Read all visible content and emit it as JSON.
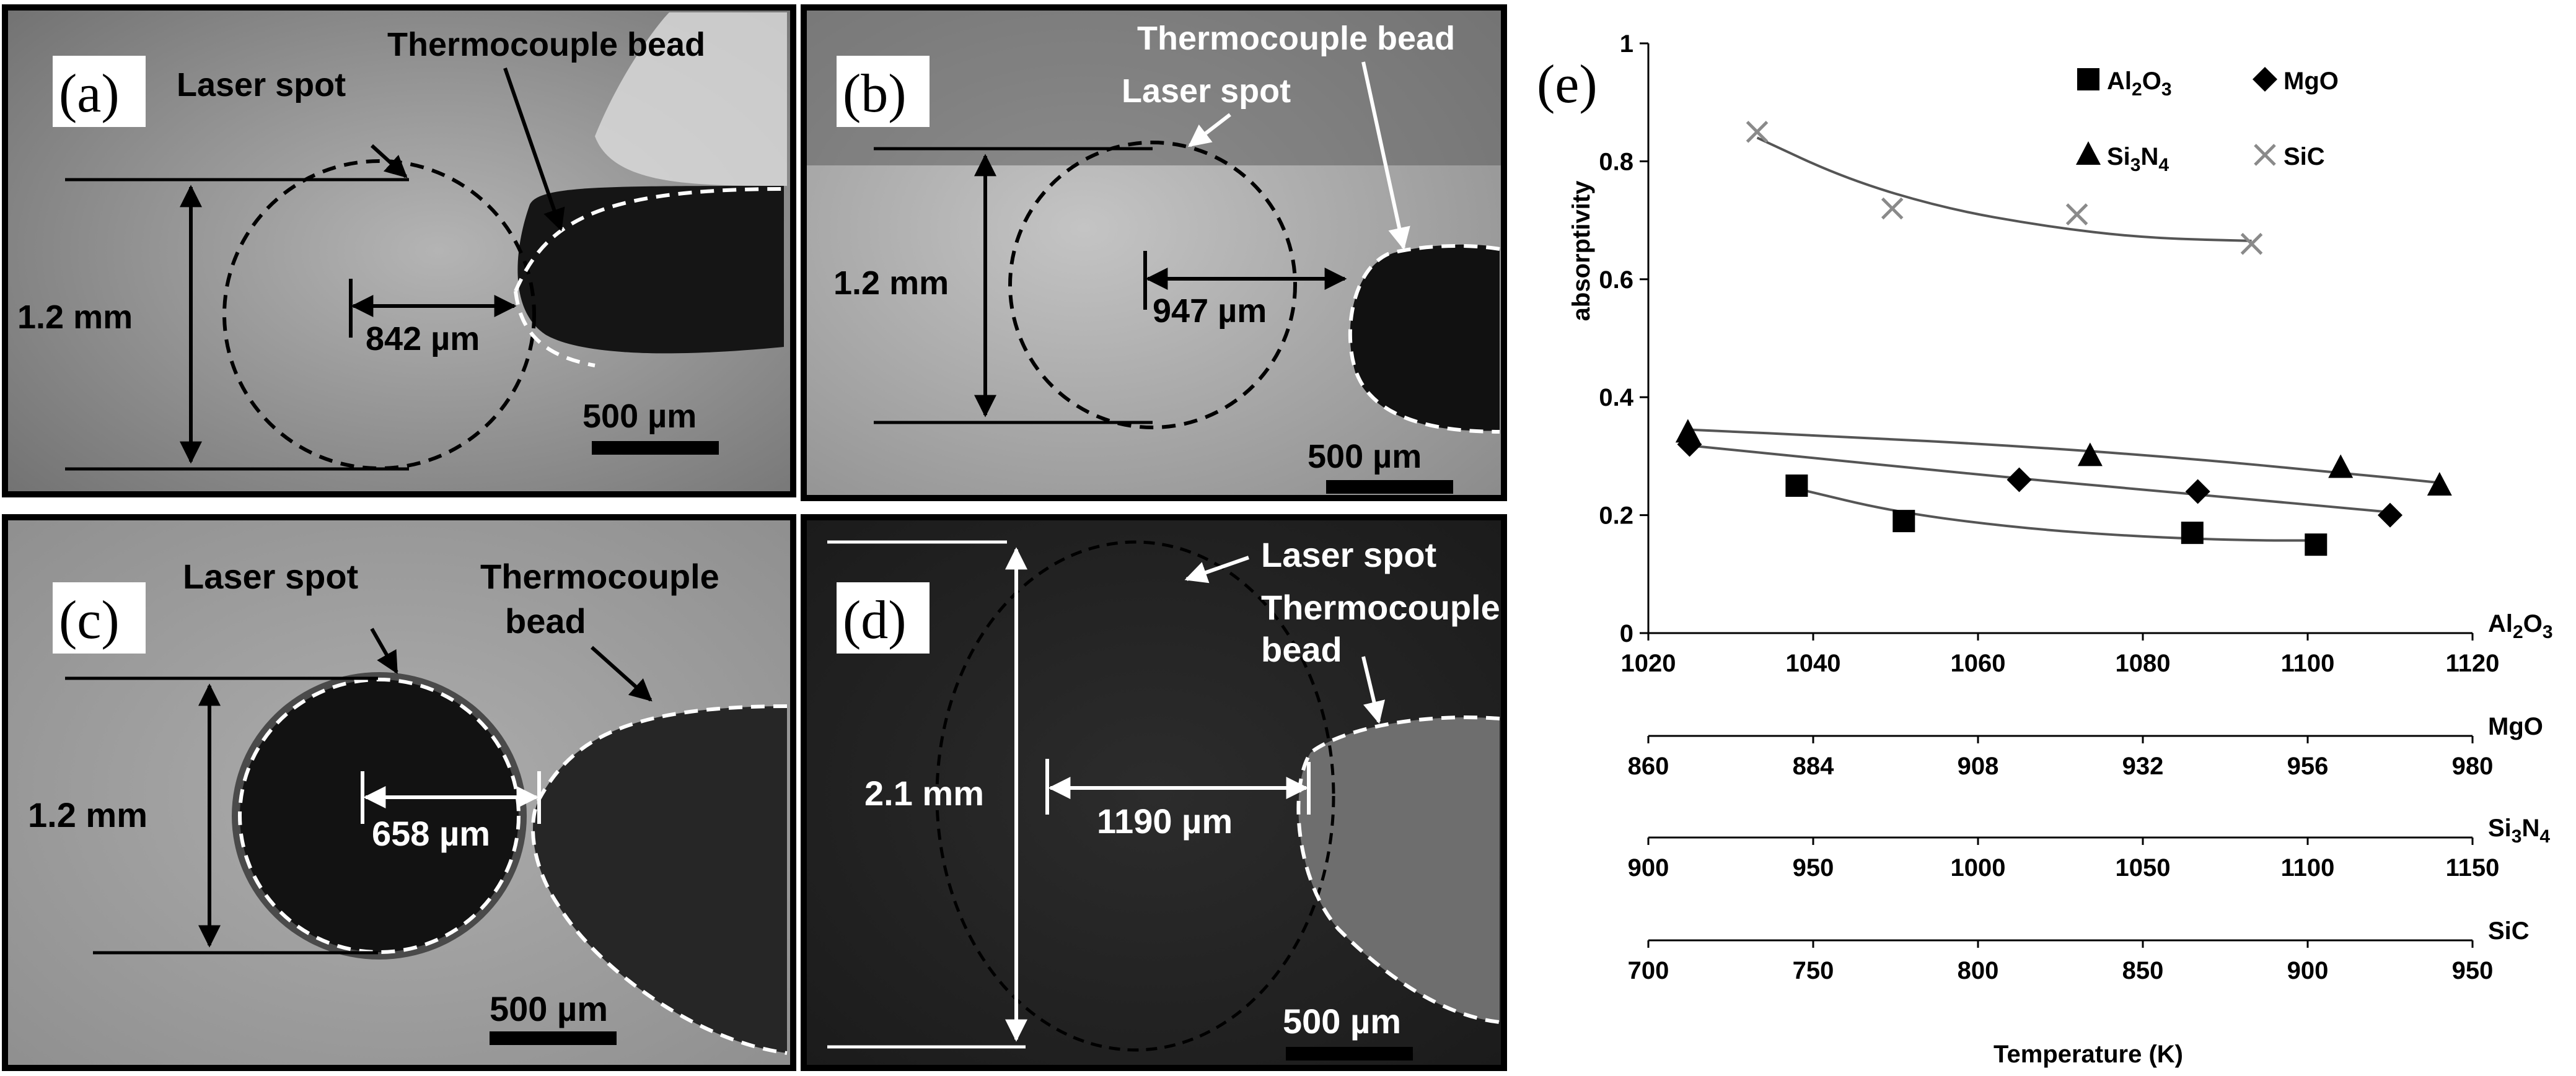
{
  "panels": {
    "a": {
      "letter": "(a)",
      "laser_spot": "Laser spot",
      "bead": "Thermocouple bead",
      "diameter": "1.2 mm",
      "distance": "842 µm",
      "scale": "500 µm"
    },
    "b": {
      "letter": "(b)",
      "laser_spot": "Laser spot",
      "bead": "Thermocouple bead",
      "diameter": "1.2 mm",
      "distance": "947 µm",
      "scale": "500 µm"
    },
    "c": {
      "letter": "(c)",
      "laser_spot": "Laser spot",
      "bead_line1": "Thermocouple",
      "bead_line2": "bead",
      "diameter": "1.2 mm",
      "distance": "658 µm",
      "scale": "500 µm"
    },
    "d": {
      "letter": "(d)",
      "laser_spot": "Laser spot",
      "bead_line1": "Thermocouple",
      "bead_line2": "bead",
      "diameter": "2.1 mm",
      "distance": "1190 µm",
      "scale": "500 µm"
    }
  },
  "chart_data": {
    "type": "scatter",
    "panel_letter": "(e)",
    "ylabel": "absorptivity",
    "xlabel": "Temperature (K)",
    "ylim": [
      0,
      1
    ],
    "yticks": [
      0,
      0.2,
      0.4,
      0.6,
      0.8,
      1
    ],
    "ytick_labels": [
      "0",
      "0.2",
      "0.4",
      "0.6",
      "0.8",
      "1"
    ],
    "legend_position": "top",
    "axes": [
      {
        "name": "Al2O3",
        "label_base": "Al",
        "label_sub1": "2",
        "label_mid": "O",
        "label_sub2": "3",
        "range": [
          1020,
          1120
        ],
        "ticks": [
          "1020",
          "1040",
          "1060",
          "1080",
          "1100",
          "1120"
        ]
      },
      {
        "name": "MgO",
        "label_base": "MgO",
        "range": [
          860,
          980
        ],
        "ticks": [
          "860",
          "884",
          "908",
          "932",
          "956",
          "980"
        ]
      },
      {
        "name": "Si3N4",
        "label_base": "Si",
        "label_sub1": "3",
        "label_mid": "N",
        "label_sub2": "4",
        "range": [
          900,
          1150
        ],
        "ticks": [
          "900",
          "950",
          "1000",
          "1050",
          "1100",
          "1150"
        ]
      },
      {
        "name": "SiC",
        "label_base": "SiC",
        "range": [
          700,
          950
        ],
        "ticks": [
          "700",
          "750",
          "800",
          "850",
          "900",
          "950"
        ]
      }
    ],
    "series": [
      {
        "name": "Al2O3",
        "label_base": "Al",
        "label_sub1": "2",
        "label_mid": "O",
        "label_sub2": "3",
        "marker": "square",
        "axis": 0,
        "x": [
          1038,
          1051,
          1086,
          1101
        ],
        "y": [
          0.25,
          0.19,
          0.17,
          0.15
        ],
        "fit": [
          [
            1038,
            0.245
          ],
          [
            1050,
            0.205
          ],
          [
            1065,
            0.178
          ],
          [
            1080,
            0.163
          ],
          [
            1093,
            0.157
          ],
          [
            1101,
            0.157
          ]
        ]
      },
      {
        "name": "MgO",
        "label_base": "MgO",
        "marker": "diamond",
        "axis": 1,
        "x": [
          866,
          914,
          940,
          968
        ],
        "y": [
          0.32,
          0.26,
          0.24,
          0.2
        ],
        "fit": [
          [
            866,
            0.318
          ],
          [
            890,
            0.29
          ],
          [
            914,
            0.262
          ],
          [
            940,
            0.235
          ],
          [
            968,
            0.205
          ]
        ]
      },
      {
        "name": "Si3N4",
        "label_base": "Si",
        "label_sub1": "3",
        "label_mid": "N",
        "label_sub2": "4",
        "marker": "triangle",
        "axis": 2,
        "x": [
          912,
          1034,
          1110,
          1140
        ],
        "y": [
          0.34,
          0.3,
          0.28,
          0.25
        ],
        "fit": [
          [
            912,
            0.345
          ],
          [
            960,
            0.333
          ],
          [
            1010,
            0.318
          ],
          [
            1060,
            0.298
          ],
          [
            1110,
            0.272
          ],
          [
            1140,
            0.255
          ]
        ]
      },
      {
        "name": "SiC",
        "label_base": "SiC",
        "marker": "cross",
        "axis": 3,
        "x": [
          733,
          774,
          830,
          883
        ],
        "y": [
          0.85,
          0.72,
          0.71,
          0.66
        ],
        "fit": [
          [
            733,
            0.84
          ],
          [
            760,
            0.77
          ],
          [
            790,
            0.72
          ],
          [
            820,
            0.69
          ],
          [
            850,
            0.67
          ],
          [
            883,
            0.665
          ]
        ]
      }
    ]
  }
}
